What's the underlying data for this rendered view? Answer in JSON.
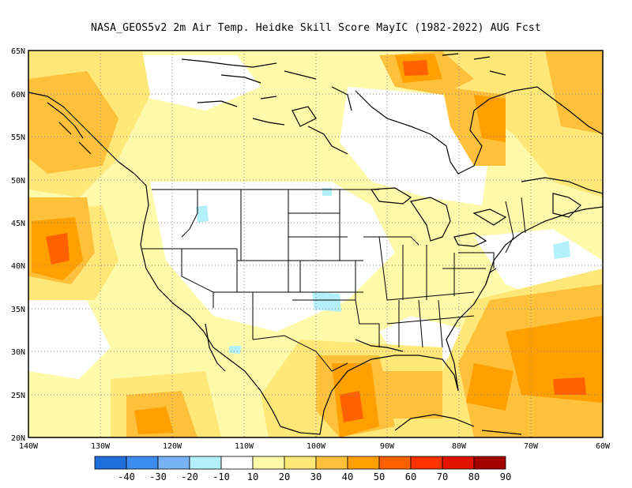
{
  "title": "NASA_GEOS5v2  2m Air Temp. Heidke Skill Score MayIC (1982-2022) AUG Fcst",
  "map": {
    "lon_ticks": [
      "140W",
      "130W",
      "120W",
      "110W",
      "100W",
      "90W",
      "80W",
      "70W",
      "60W"
    ],
    "lat_ticks": [
      "65N",
      "60N",
      "55N",
      "50N",
      "45N",
      "40N",
      "35N",
      "30N",
      "25N",
      "20N"
    ],
    "grid": "dotted"
  },
  "colorbar": {
    "labels": [
      "-40",
      "-30",
      "-20",
      "-10",
      "10",
      "20",
      "30",
      "40",
      "50",
      "60",
      "70",
      "80",
      "90"
    ],
    "colors": [
      "#1e6edc",
      "#3c8cf0",
      "#78b4f5",
      "#b4f0fa",
      "#ffffff",
      "#fffaaa",
      "#ffe878",
      "#ffc03c",
      "#ffa000",
      "#ff6000",
      "#ff3200",
      "#e11400",
      "#a50000"
    ]
  },
  "colors": {
    "light_yellow": "#fffaaa",
    "yellow": "#ffe878",
    "gold": "#ffc03c",
    "orange": "#ffa000",
    "deep_orange": "#ff6000",
    "cyan": "#b4f0fa"
  }
}
